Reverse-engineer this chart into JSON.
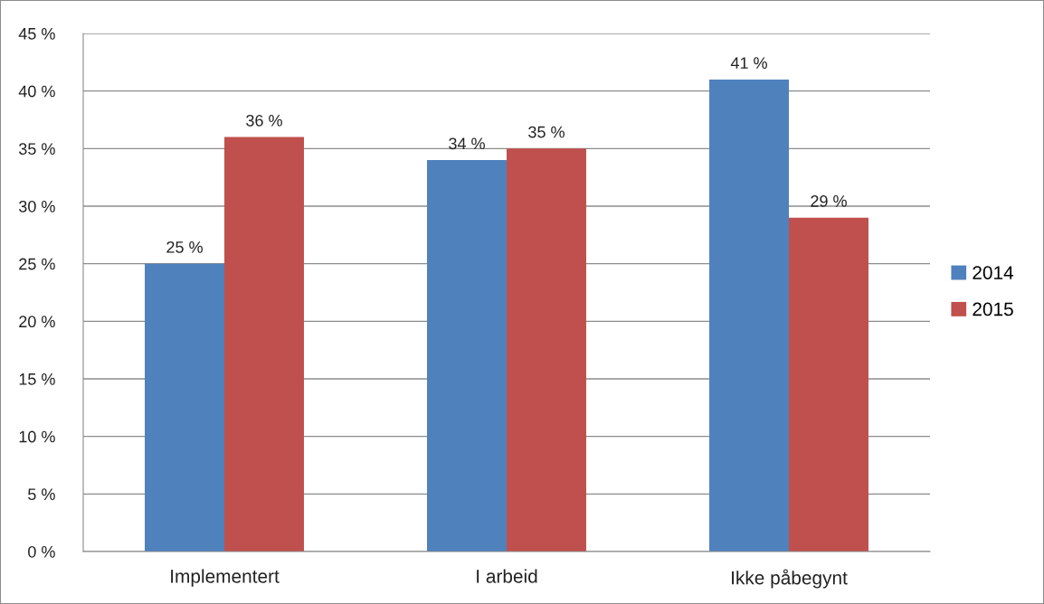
{
  "chart_data": {
    "type": "bar",
    "categories": [
      "Implementert",
      "I arbeid",
      "Ikke påbegynt"
    ],
    "series": [
      {
        "name": "2014",
        "color": "#4f81bd",
        "values": [
          25,
          34,
          41
        ],
        "value_labels": [
          "25 %",
          "34 %",
          "41 %"
        ]
      },
      {
        "name": "2015",
        "color": "#c0504d",
        "values": [
          36,
          35,
          29
        ],
        "value_labels": [
          "36 %",
          "35 %",
          "29 %"
        ]
      }
    ],
    "ylim": [
      0,
      45
    ],
    "yticks": [
      {
        "value": 0,
        "label": "0 %"
      },
      {
        "value": 5,
        "label": "5 %"
      },
      {
        "value": 10,
        "label": "10 %"
      },
      {
        "value": 15,
        "label": "15 %"
      },
      {
        "value": 20,
        "label": "20 %"
      },
      {
        "value": 25,
        "label": "25 %"
      },
      {
        "value": 30,
        "label": "30 %"
      },
      {
        "value": 35,
        "label": "35 %"
      },
      {
        "value": 40,
        "label": "40 %"
      },
      {
        "value": 45,
        "label": "45 %"
      }
    ],
    "grid": "y",
    "legend": "right"
  }
}
